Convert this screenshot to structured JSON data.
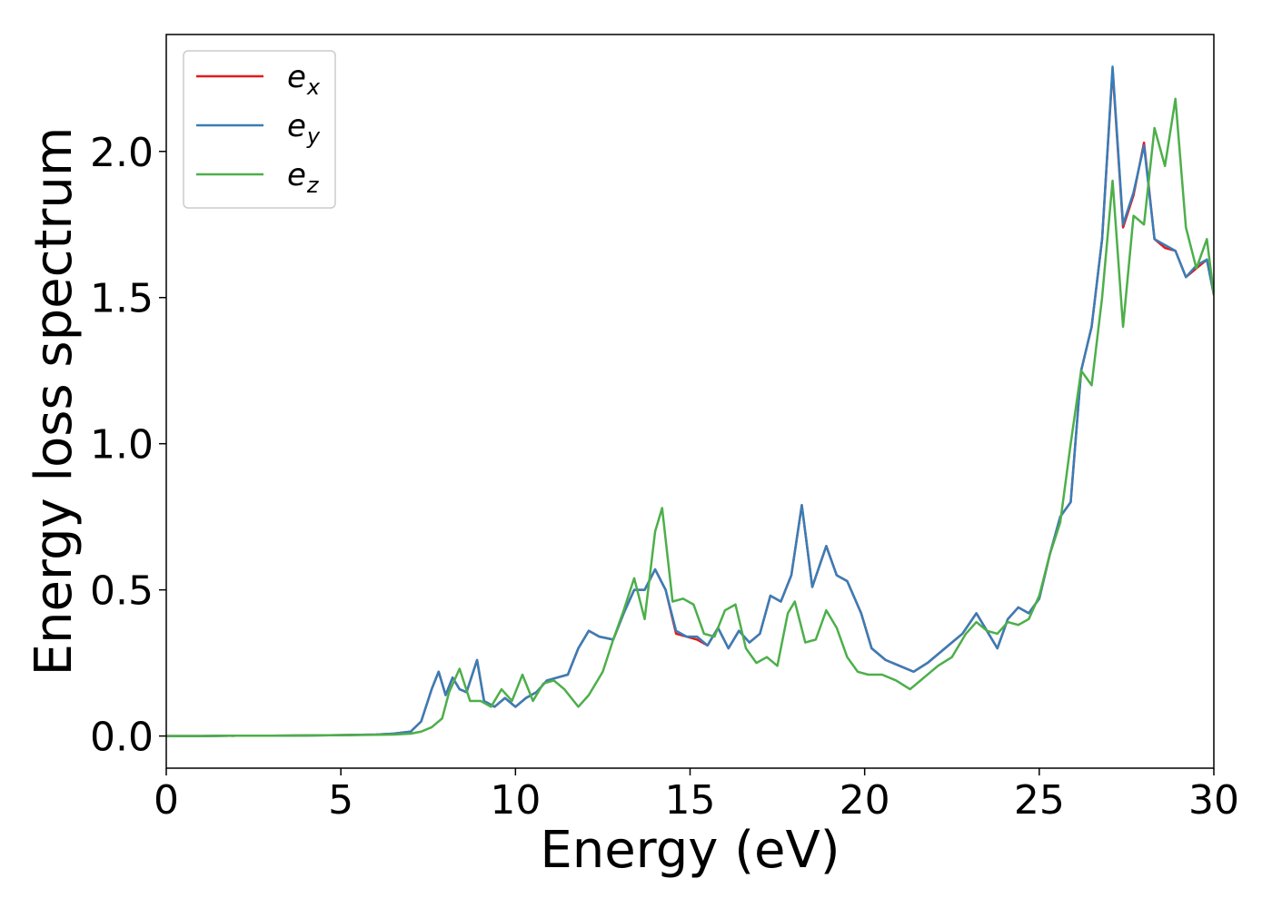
{
  "chart_data": {
    "type": "line",
    "title": "",
    "xlabel": "Energy (eV)",
    "ylabel": "Energy loss spectrum",
    "xlim": [
      0,
      30
    ],
    "ylim": [
      -0.11,
      2.4
    ],
    "xticks": [
      0,
      5,
      10,
      15,
      20,
      25,
      30
    ],
    "xtick_labels": [
      "0",
      "5",
      "10",
      "15",
      "20",
      "25",
      "30"
    ],
    "yticks": [
      0.0,
      0.5,
      1.0,
      1.5,
      2.0
    ],
    "ytick_labels": [
      "0.0",
      "0.5",
      "1.0",
      "1.5",
      "2.0"
    ],
    "grid": false,
    "legend_position": "top-left",
    "series": [
      {
        "name": "e_x",
        "label_base": "e",
        "label_sub": "x",
        "color": "#e41a1c",
        "x": [
          0,
          1,
          2,
          3,
          4,
          5,
          6,
          6.5,
          7,
          7.3,
          7.6,
          7.8,
          8.0,
          8.2,
          8.4,
          8.6,
          8.9,
          9.1,
          9.4,
          9.7,
          10,
          10.3,
          10.6,
          10.9,
          11.2,
          11.5,
          11.8,
          12.1,
          12.4,
          12.8,
          13.1,
          13.4,
          13.7,
          14.0,
          14.3,
          14.6,
          14.9,
          15.2,
          15.5,
          15.8,
          16.1,
          16.4,
          16.7,
          17.0,
          17.3,
          17.6,
          17.9,
          18.2,
          18.5,
          18.9,
          19.2,
          19.5,
          19.9,
          20.2,
          20.6,
          21.0,
          21.4,
          21.8,
          22.3,
          22.8,
          23.2,
          23.5,
          23.8,
          24.1,
          24.4,
          24.7,
          25.0,
          25.3,
          25.6,
          25.9,
          26.2,
          26.5,
          26.8,
          27.1,
          27.4,
          27.7,
          28.0,
          28.3,
          28.6,
          28.9,
          29.2,
          29.5,
          29.8,
          30
        ],
        "y": [
          0,
          0,
          0.001,
          0.001,
          0.002,
          0.003,
          0.005,
          0.008,
          0.015,
          0.05,
          0.16,
          0.22,
          0.14,
          0.2,
          0.16,
          0.15,
          0.26,
          0.12,
          0.1,
          0.13,
          0.1,
          0.13,
          0.15,
          0.19,
          0.2,
          0.21,
          0.3,
          0.36,
          0.34,
          0.33,
          0.42,
          0.5,
          0.5,
          0.57,
          0.5,
          0.35,
          0.34,
          0.33,
          0.31,
          0.37,
          0.3,
          0.36,
          0.32,
          0.35,
          0.48,
          0.46,
          0.55,
          0.79,
          0.51,
          0.65,
          0.55,
          0.53,
          0.42,
          0.3,
          0.26,
          0.24,
          0.22,
          0.25,
          0.3,
          0.35,
          0.42,
          0.36,
          0.3,
          0.4,
          0.44,
          0.42,
          0.47,
          0.62,
          0.75,
          0.8,
          1.25,
          1.4,
          1.7,
          2.28,
          1.74,
          1.85,
          2.03,
          1.7,
          1.67,
          1.66,
          1.57,
          1.6,
          1.63,
          1.51
        ]
      },
      {
        "name": "e_y",
        "label_base": "e",
        "label_sub": "y",
        "color": "#377eb8",
        "x": [
          0,
          1,
          2,
          3,
          4,
          5,
          6,
          6.5,
          7,
          7.3,
          7.6,
          7.8,
          8.0,
          8.2,
          8.4,
          8.6,
          8.9,
          9.1,
          9.4,
          9.7,
          10,
          10.3,
          10.6,
          10.9,
          11.2,
          11.5,
          11.8,
          12.1,
          12.4,
          12.8,
          13.1,
          13.4,
          13.7,
          14.0,
          14.3,
          14.6,
          14.9,
          15.2,
          15.5,
          15.8,
          16.1,
          16.4,
          16.7,
          17.0,
          17.3,
          17.6,
          17.9,
          18.2,
          18.5,
          18.9,
          19.2,
          19.5,
          19.9,
          20.2,
          20.6,
          21.0,
          21.4,
          21.8,
          22.3,
          22.8,
          23.2,
          23.5,
          23.8,
          24.1,
          24.4,
          24.7,
          25.0,
          25.3,
          25.6,
          25.9,
          26.2,
          26.5,
          26.8,
          27.1,
          27.4,
          27.7,
          28.0,
          28.3,
          28.6,
          28.9,
          29.2,
          29.5,
          29.8,
          30
        ],
        "y": [
          0,
          0,
          0.001,
          0.001,
          0.002,
          0.003,
          0.005,
          0.008,
          0.015,
          0.05,
          0.16,
          0.22,
          0.14,
          0.2,
          0.16,
          0.15,
          0.26,
          0.12,
          0.1,
          0.13,
          0.1,
          0.13,
          0.15,
          0.19,
          0.2,
          0.21,
          0.3,
          0.36,
          0.34,
          0.33,
          0.42,
          0.5,
          0.5,
          0.57,
          0.5,
          0.36,
          0.34,
          0.34,
          0.31,
          0.37,
          0.3,
          0.36,
          0.32,
          0.35,
          0.48,
          0.46,
          0.55,
          0.79,
          0.51,
          0.65,
          0.55,
          0.53,
          0.42,
          0.3,
          0.26,
          0.24,
          0.22,
          0.25,
          0.3,
          0.35,
          0.42,
          0.36,
          0.3,
          0.4,
          0.44,
          0.42,
          0.47,
          0.62,
          0.75,
          0.8,
          1.25,
          1.4,
          1.7,
          2.29,
          1.75,
          1.86,
          2.02,
          1.7,
          1.68,
          1.66,
          1.57,
          1.61,
          1.63,
          1.51
        ]
      },
      {
        "name": "e_z",
        "label_base": "e",
        "label_sub": "z",
        "color": "#4daf4a",
        "x": [
          0,
          1,
          2,
          3,
          4,
          5,
          6,
          6.5,
          7,
          7.3,
          7.6,
          7.9,
          8.1,
          8.4,
          8.7,
          9.0,
          9.3,
          9.6,
          9.9,
          10.2,
          10.5,
          10.8,
          11.1,
          11.4,
          11.8,
          12.1,
          12.5,
          12.8,
          13.1,
          13.4,
          13.7,
          14.0,
          14.2,
          14.5,
          14.8,
          15.1,
          15.4,
          15.7,
          16.0,
          16.3,
          16.6,
          16.9,
          17.2,
          17.5,
          17.8,
          18.0,
          18.3,
          18.6,
          18.9,
          19.2,
          19.5,
          19.8,
          20.1,
          20.5,
          20.9,
          21.3,
          21.7,
          22.1,
          22.5,
          22.9,
          23.2,
          23.5,
          23.8,
          24.1,
          24.4,
          24.7,
          25.0,
          25.3,
          25.6,
          25.9,
          26.2,
          26.5,
          26.8,
          27.1,
          27.4,
          27.7,
          28.0,
          28.3,
          28.6,
          28.9,
          29.2,
          29.5,
          29.8,
          30
        ],
        "y": [
          0,
          0,
          0.001,
          0.001,
          0.002,
          0.003,
          0.004,
          0.005,
          0.008,
          0.015,
          0.03,
          0.06,
          0.15,
          0.23,
          0.12,
          0.12,
          0.1,
          0.16,
          0.12,
          0.21,
          0.12,
          0.18,
          0.19,
          0.16,
          0.1,
          0.14,
          0.22,
          0.33,
          0.43,
          0.54,
          0.4,
          0.7,
          0.78,
          0.46,
          0.47,
          0.45,
          0.35,
          0.34,
          0.43,
          0.45,
          0.3,
          0.25,
          0.27,
          0.24,
          0.42,
          0.46,
          0.32,
          0.33,
          0.43,
          0.37,
          0.27,
          0.22,
          0.21,
          0.21,
          0.19,
          0.16,
          0.2,
          0.24,
          0.27,
          0.35,
          0.39,
          0.36,
          0.35,
          0.39,
          0.38,
          0.4,
          0.48,
          0.62,
          0.73,
          1.0,
          1.25,
          1.2,
          1.5,
          1.9,
          1.4,
          1.78,
          1.75,
          2.08,
          1.95,
          2.18,
          1.74,
          1.6,
          1.7,
          1.51
        ]
      }
    ]
  }
}
